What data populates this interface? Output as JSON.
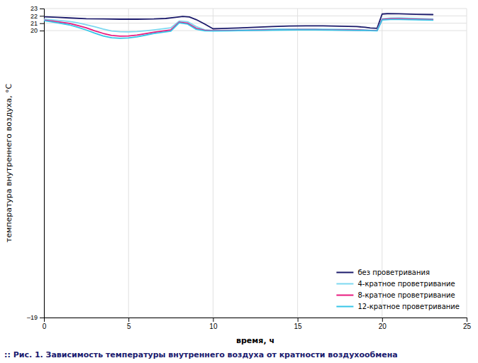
{
  "chart_data": {
    "type": "line",
    "title": ":: Рис. 1. Зависимость температуры внутреннего воздуха от кратности воздухообмена",
    "x_label": "время, ч",
    "y_label": "температура внутреннего воздуха, °С",
    "xlim": [
      0,
      25
    ],
    "ylim": [
      -19,
      23
    ],
    "xticks": [
      0,
      5,
      10,
      15,
      20,
      25
    ],
    "yticks": [
      {
        "value": -19,
        "label": "–19"
      },
      20,
      21,
      22,
      23
    ],
    "grid": true,
    "legend": "lower right",
    "series": [
      {
        "name": "без проветривания",
        "color": "#1b1a6b",
        "x": [
          0,
          0.3,
          0.8,
          1.5,
          2.5,
          3.5,
          4.5,
          5.5,
          6.5,
          7.2,
          7.8,
          8.2,
          8.6,
          9.0,
          9.5,
          10.0,
          10.5,
          11.5,
          12.5,
          13.5,
          14.5,
          15.5,
          16.5,
          17.5,
          18.5,
          19.0,
          19.3,
          19.7,
          20.0,
          20.3,
          21.0,
          22.0,
          23.0
        ],
        "values": [
          21.88,
          21.85,
          21.8,
          21.72,
          21.62,
          21.58,
          21.55,
          21.55,
          21.58,
          21.65,
          21.8,
          21.92,
          21.85,
          21.5,
          20.9,
          20.25,
          20.28,
          20.35,
          20.45,
          20.55,
          20.62,
          20.65,
          20.65,
          20.6,
          20.55,
          20.45,
          20.35,
          20.3,
          22.25,
          22.3,
          22.28,
          22.22,
          22.18
        ]
      },
      {
        "name": "4-кратное проветривание",
        "color": "#7dd8f0",
        "x": [
          0,
          0.3,
          0.8,
          1.5,
          2.0,
          2.5,
          3.0,
          3.5,
          4.0,
          4.5,
          5.0,
          5.5,
          6.0,
          6.5,
          7.5,
          8.0,
          8.5,
          9.0,
          9.5,
          10.0,
          11.0,
          12.0,
          13.0,
          14.0,
          15.0,
          16.0,
          17.0,
          18.0,
          19.0,
          19.3,
          19.7,
          20.0,
          20.5,
          21.0,
          22.0,
          23.0
        ],
        "values": [
          21.55,
          21.5,
          21.4,
          21.25,
          21.05,
          20.8,
          20.52,
          20.22,
          19.95,
          19.85,
          19.82,
          19.88,
          19.98,
          20.1,
          20.38,
          21.3,
          21.2,
          20.55,
          20.12,
          20.02,
          20.05,
          20.1,
          20.15,
          20.2,
          20.22,
          20.22,
          20.18,
          20.15,
          20.1,
          20.05,
          20.02,
          21.6,
          21.7,
          21.72,
          21.65,
          21.58
        ]
      },
      {
        "name": "8-кратное проветривание",
        "color": "#e8197e",
        "x": [
          0,
          0.3,
          0.8,
          1.5,
          2.0,
          2.5,
          3.0,
          3.5,
          4.0,
          4.5,
          5.0,
          5.5,
          6.0,
          6.5,
          7.5,
          8.0,
          8.5,
          9.0,
          9.5,
          10.0,
          11.0,
          12.0,
          13.0,
          14.0,
          15.0,
          16.0,
          17.0,
          18.0,
          19.0,
          19.3,
          19.7,
          20.0,
          20.5,
          21.0,
          22.0,
          23.0
        ],
        "values": [
          21.42,
          21.35,
          21.2,
          20.98,
          20.7,
          20.38,
          19.98,
          19.62,
          19.35,
          19.25,
          19.28,
          19.4,
          19.58,
          19.78,
          20.08,
          21.15,
          21.0,
          20.32,
          20.05,
          20.0,
          20.02,
          20.05,
          20.08,
          20.12,
          20.14,
          20.14,
          20.1,
          20.08,
          20.05,
          20.02,
          20.0,
          21.52,
          21.6,
          21.6,
          21.53,
          21.48
        ]
      },
      {
        "name": "12-кратное проветривание",
        "color": "#36c5e8",
        "x": [
          0,
          0.3,
          0.8,
          1.5,
          2.0,
          2.5,
          3.0,
          3.5,
          4.0,
          4.5,
          5.0,
          5.5,
          6.0,
          6.5,
          7.5,
          8.0,
          8.5,
          9.0,
          9.5,
          10.0,
          11.0,
          12.0,
          13.0,
          14.0,
          15.0,
          16.0,
          17.0,
          18.0,
          19.0,
          19.3,
          19.7,
          20.0,
          20.5,
          21.0,
          22.0,
          23.0
        ],
        "values": [
          21.35,
          21.25,
          21.05,
          20.78,
          20.45,
          20.08,
          19.65,
          19.28,
          19.02,
          18.95,
          19.0,
          19.15,
          19.38,
          19.6,
          19.92,
          21.05,
          20.88,
          20.18,
          19.98,
          19.95,
          19.98,
          20.02,
          20.05,
          20.08,
          20.1,
          20.1,
          20.07,
          20.05,
          20.02,
          20.0,
          19.98,
          21.45,
          21.52,
          21.52,
          21.46,
          21.42
        ]
      }
    ]
  }
}
